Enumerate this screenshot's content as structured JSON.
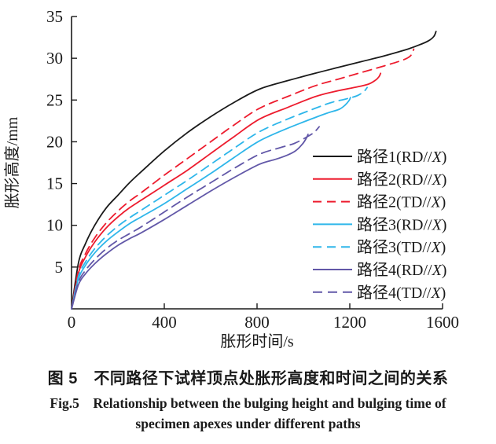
{
  "figure": {
    "caption_zh": "图 5　不同路径下试样顶点处胀形高度和时间之间的关系",
    "caption_en_line1": "Fig.5　Relationship between the bulging height and bulging time of",
    "caption_en_line2": "specimen apexes under different paths"
  },
  "chart_data": {
    "type": "line",
    "title": "",
    "xlabel": "胀形时间/s",
    "ylabel": "胀形高度/mm",
    "xlim": [
      0,
      1600
    ],
    "ylim": [
      0,
      35
    ],
    "x_ticks": [
      0,
      400,
      800,
      1200,
      1600
    ],
    "y_ticks": [
      5,
      10,
      15,
      20,
      25,
      30,
      35
    ],
    "grid": false,
    "legend_position": "inside lower-right",
    "colors": {
      "black": "#1a1a1a",
      "red": "#ed1c2e",
      "cyan": "#2eb6ea",
      "purple": "#6258a8"
    },
    "series": [
      {
        "id": "path1-rdx",
        "label_prefix": "路径1(RD//",
        "label_x": "X",
        "label_suffix": ")",
        "color": "#1a1a1a",
        "dasharray": "",
        "points": [
          [
            0,
            0
          ],
          [
            30,
            5.5
          ],
          [
            60,
            7.8
          ],
          [
            100,
            10.0
          ],
          [
            150,
            12.1
          ],
          [
            200,
            13.6
          ],
          [
            250,
            15.1
          ],
          [
            300,
            16.4
          ],
          [
            400,
            18.9
          ],
          [
            500,
            21.1
          ],
          [
            600,
            23.0
          ],
          [
            700,
            24.7
          ],
          [
            810,
            26.3
          ],
          [
            930,
            27.3
          ],
          [
            1050,
            28.2
          ],
          [
            1150,
            28.9
          ],
          [
            1250,
            29.6
          ],
          [
            1350,
            30.3
          ],
          [
            1450,
            31.1
          ],
          [
            1500,
            31.6
          ],
          [
            1540,
            32.1
          ],
          [
            1562,
            32.6
          ],
          [
            1572,
            33.2
          ]
        ]
      },
      {
        "id": "path2-rdx",
        "label_prefix": "路径2(RD//",
        "label_x": "X",
        "label_suffix": ")",
        "color": "#ed1c2e",
        "dasharray": "",
        "points": [
          [
            0,
            0
          ],
          [
            30,
            4.3
          ],
          [
            60,
            6.2
          ],
          [
            100,
            8.0
          ],
          [
            150,
            9.7
          ],
          [
            200,
            11.0
          ],
          [
            250,
            12.1
          ],
          [
            300,
            13.0
          ],
          [
            400,
            14.8
          ],
          [
            500,
            16.6
          ],
          [
            600,
            18.6
          ],
          [
            700,
            20.6
          ],
          [
            810,
            22.7
          ],
          [
            930,
            24.1
          ],
          [
            1050,
            25.4
          ],
          [
            1130,
            26.0
          ],
          [
            1220,
            26.5
          ],
          [
            1280,
            26.9
          ],
          [
            1312,
            27.4
          ],
          [
            1326,
            27.8
          ],
          [
            1333,
            28.2
          ]
        ]
      },
      {
        "id": "path2-tdx",
        "label_prefix": "路径2(TD//",
        "label_x": "X",
        "label_suffix": ")",
        "color": "#ed1c2e",
        "dasharray": "11,7",
        "points": [
          [
            0,
            0
          ],
          [
            30,
            4.6
          ],
          [
            60,
            6.6
          ],
          [
            100,
            8.5
          ],
          [
            150,
            10.3
          ],
          [
            200,
            11.7
          ],
          [
            250,
            12.9
          ],
          [
            300,
            13.9
          ],
          [
            400,
            16.0
          ],
          [
            500,
            18.0
          ],
          [
            600,
            20.0
          ],
          [
            700,
            22.0
          ],
          [
            810,
            24.0
          ],
          [
            930,
            25.4
          ],
          [
            1050,
            26.7
          ],
          [
            1150,
            27.5
          ],
          [
            1250,
            28.3
          ],
          [
            1350,
            29.1
          ],
          [
            1430,
            29.8
          ],
          [
            1462,
            30.3
          ],
          [
            1476,
            31.1
          ]
        ]
      },
      {
        "id": "path3-rdx",
        "label_prefix": "路径3(RD//",
        "label_x": "X",
        "label_suffix": ")",
        "color": "#2eb6ea",
        "dasharray": "",
        "points": [
          [
            0,
            0
          ],
          [
            30,
            3.6
          ],
          [
            60,
            5.2
          ],
          [
            100,
            6.7
          ],
          [
            150,
            8.1
          ],
          [
            200,
            9.2
          ],
          [
            250,
            10.2
          ],
          [
            300,
            11.0
          ],
          [
            400,
            12.6
          ],
          [
            500,
            14.4
          ],
          [
            600,
            16.2
          ],
          [
            700,
            18.1
          ],
          [
            810,
            20.1
          ],
          [
            930,
            21.6
          ],
          [
            1050,
            22.9
          ],
          [
            1110,
            23.5
          ],
          [
            1155,
            23.9
          ],
          [
            1180,
            24.4
          ],
          [
            1196,
            24.9
          ],
          [
            1203,
            25.3
          ]
        ]
      },
      {
        "id": "path3-tdx",
        "label_prefix": "路径3(TD//",
        "label_x": "X",
        "label_suffix": ")",
        "color": "#2eb6ea",
        "dasharray": "11,7",
        "points": [
          [
            0,
            0
          ],
          [
            30,
            3.9
          ],
          [
            60,
            5.6
          ],
          [
            100,
            7.2
          ],
          [
            150,
            8.7
          ],
          [
            200,
            9.9
          ],
          [
            250,
            10.9
          ],
          [
            300,
            11.8
          ],
          [
            400,
            13.6
          ],
          [
            500,
            15.4
          ],
          [
            600,
            17.3
          ],
          [
            700,
            19.2
          ],
          [
            810,
            21.2
          ],
          [
            930,
            22.7
          ],
          [
            1050,
            24.0
          ],
          [
            1120,
            24.7
          ],
          [
            1180,
            25.1
          ],
          [
            1230,
            25.5
          ],
          [
            1260,
            26.0
          ],
          [
            1275,
            26.5
          ]
        ]
      },
      {
        "id": "path4-rdx",
        "label_prefix": "路径4(RD//",
        "label_x": "X",
        "label_suffix": ")",
        "color": "#6258a8",
        "dasharray": "",
        "points": [
          [
            0,
            0
          ],
          [
            30,
            2.9
          ],
          [
            60,
            4.2
          ],
          [
            100,
            5.4
          ],
          [
            150,
            6.6
          ],
          [
            200,
            7.6
          ],
          [
            250,
            8.4
          ],
          [
            300,
            9.1
          ],
          [
            400,
            10.7
          ],
          [
            500,
            12.4
          ],
          [
            600,
            14.1
          ],
          [
            700,
            15.7
          ],
          [
            810,
            17.3
          ],
          [
            880,
            17.9
          ],
          [
            930,
            18.4
          ],
          [
            965,
            18.9
          ],
          [
            995,
            19.7
          ],
          [
            1012,
            20.4
          ],
          [
            1020,
            20.9
          ]
        ]
      },
      {
        "id": "path4-tdx",
        "label_prefix": "路径4(TD//",
        "label_x": "X",
        "label_suffix": ")",
        "color": "#6258a8",
        "dasharray": "12,7",
        "points": [
          [
            0,
            0
          ],
          [
            30,
            3.2
          ],
          [
            60,
            4.6
          ],
          [
            100,
            5.9
          ],
          [
            150,
            7.2
          ],
          [
            200,
            8.2
          ],
          [
            250,
            9.0
          ],
          [
            300,
            9.8
          ],
          [
            400,
            11.6
          ],
          [
            500,
            13.4
          ],
          [
            600,
            15.1
          ],
          [
            700,
            16.8
          ],
          [
            810,
            18.5
          ],
          [
            900,
            19.3
          ],
          [
            960,
            19.8
          ],
          [
            1010,
            20.5
          ],
          [
            1045,
            21.1
          ],
          [
            1068,
            21.8
          ]
        ]
      }
    ]
  }
}
